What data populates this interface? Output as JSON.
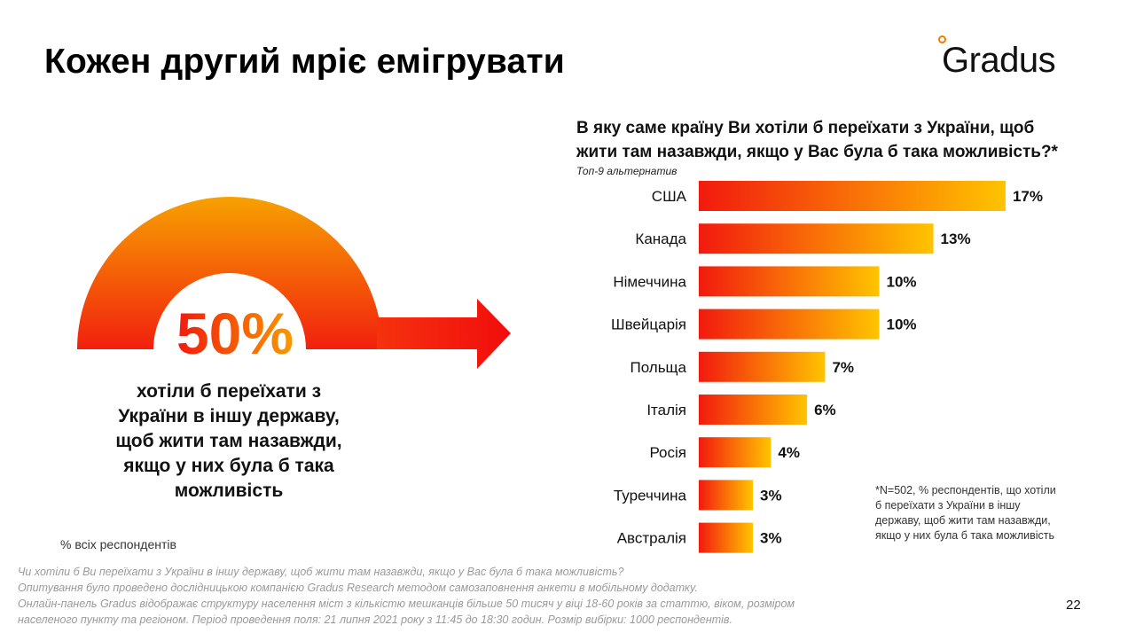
{
  "title": "Кожен другий мріє емігрувати",
  "logo": {
    "text": "Gradus"
  },
  "headline": {
    "percent": "50%",
    "description_lines": [
      "хотіли б переїхати з",
      "України в іншу державу,",
      "щоб жити там назавжди,",
      "якщо у них була б така",
      "можливість"
    ],
    "base_note": "% всіх респондентів"
  },
  "question": {
    "lines": [
      "В яку саме країну Ви хотіли б переїхати з України, щоб",
      "жити там назавжди, якщо у Вас була б така можливість?*"
    ],
    "subtitle": "Топ-9 альтернатив"
  },
  "chart_data": {
    "type": "bar",
    "orientation": "horizontal",
    "categories": [
      "США",
      "Канада",
      "Німеччина",
      "Швейцарія",
      "Польща",
      "Італія",
      "Росія",
      "Туреччина",
      "Австралія"
    ],
    "values": [
      17,
      13,
      10,
      10,
      7,
      6,
      4,
      3,
      3
    ],
    "value_labels": [
      "17%",
      "13%",
      "10%",
      "10%",
      "7%",
      "6%",
      "4%",
      "3%",
      "3%"
    ],
    "unit": "%",
    "bar_gradient": [
      "#f21a0e",
      "#ffc400"
    ]
  },
  "footnote_lines": [
    "*N=502, % респондентів, що хотіли",
    "б переїхати з України в іншу",
    "державу, щоб жити там назавжди,",
    "якщо у них була б така можливість"
  ],
  "bottom_notes": [
    "Чи хотіли б Ви переїхати з України в іншу державу, щоб жити там назавжди, якщо у Вас була б така можливість?",
    "Опитування було проведено дослідницькою компанією Gradus Research методом самозаповнення анкети в мобільному додатку.",
    "Онлайн-панель Gradus відображає структуру населення міст з кількістю мешканців більше 50 тисяч у віці 18-60 років за статтю, віком, розміром",
    "населеного пункту та регіоном. Період проведення поля: 21 липня 2021 року з 11:45 до 18:30 годин. Розмір вибірки: 1000 респондентів."
  ],
  "page_number": "22"
}
